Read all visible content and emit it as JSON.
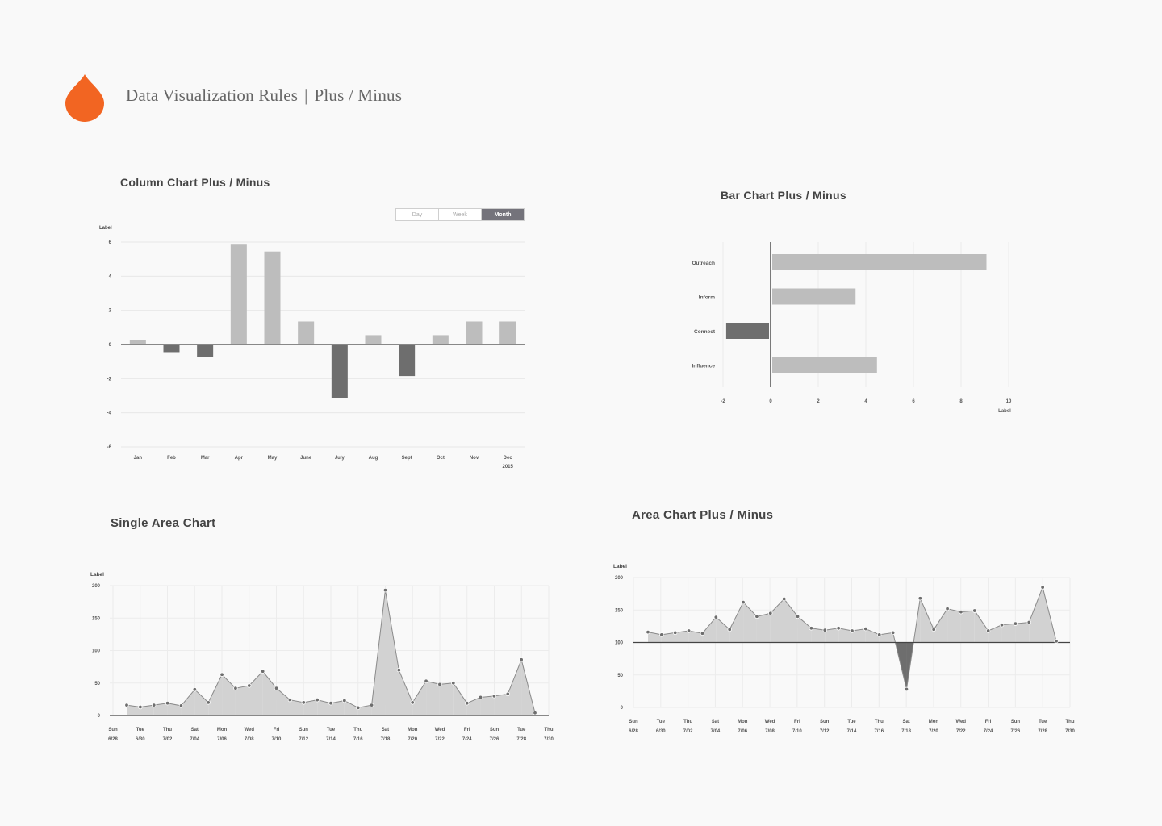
{
  "header": {
    "title": "Data Visualization Rules",
    "separator": "|",
    "subtitle": "Plus / Minus",
    "logo_color": "#f26522"
  },
  "colors": {
    "positive": "#bdbdbd",
    "negative": "#6e6e6e",
    "area": "#d2d2d2",
    "axis": "#444444"
  },
  "column_toggle": {
    "options": [
      "Day",
      "Week",
      "Month"
    ],
    "selected": "Month"
  },
  "chart_data": [
    {
      "id": "column",
      "type": "bar",
      "title": "Column Chart  Plus / Minus",
      "ylabel": "Label",
      "ylim": [
        -6,
        6
      ],
      "yticks": [
        6,
        4,
        2,
        0,
        -2,
        -4,
        -6
      ],
      "categories": [
        "Jan",
        "Feb",
        "Mar",
        "Apr",
        "May",
        "June",
        "July",
        "Aug",
        "Sept",
        "Oct",
        "Nov",
        "Dec"
      ],
      "year_label": "2015",
      "values": [
        0.2,
        -0.4,
        -0.7,
        5.8,
        5.4,
        1.3,
        -3.1,
        0.5,
        -1.8,
        0.5,
        1.3,
        1.3
      ],
      "grid": true
    },
    {
      "id": "bar",
      "type": "bar",
      "orientation": "horizontal",
      "title": "Bar Chart Plus / Minus",
      "xlabel": "Label",
      "xlim": [
        -2,
        10
      ],
      "xticks": [
        -2,
        0,
        2,
        4,
        6,
        8,
        10
      ],
      "categories": [
        "Outreach",
        "Inform",
        "Connect",
        "Influence"
      ],
      "values": [
        9,
        3.5,
        -1.8,
        4.4
      ],
      "grid": true
    },
    {
      "id": "single_area",
      "type": "area",
      "title": "Single Area Chart",
      "ylabel": "Label",
      "ylim": [
        0,
        200
      ],
      "yticks": [
        200,
        150,
        100,
        50,
        0
      ],
      "baseline": 0,
      "x_labels": [
        [
          "Sun",
          "6/28"
        ],
        [
          "Tue",
          "6/30"
        ],
        [
          "Thu",
          "7/02"
        ],
        [
          "Sat",
          "7/04"
        ],
        [
          "Mon",
          "7/06"
        ],
        [
          "Wed",
          "7/08"
        ],
        [
          "Fri",
          "7/10"
        ],
        [
          "Sun",
          "7/12"
        ],
        [
          "Tue",
          "7/14"
        ],
        [
          "Thu",
          "7/16"
        ],
        [
          "Sat",
          "7/18"
        ],
        [
          "Mon",
          "7/20"
        ],
        [
          "Wed",
          "7/22"
        ],
        [
          "Fri",
          "7/24"
        ],
        [
          "Sun",
          "7/26"
        ],
        [
          "Tue",
          "7/28"
        ],
        [
          "Thu",
          "7/30"
        ]
      ],
      "values": [
        16,
        13,
        16,
        19,
        15,
        40,
        20,
        63,
        42,
        46,
        68,
        42,
        24,
        20,
        24,
        19,
        23,
        12,
        16,
        193,
        70,
        20,
        53,
        48,
        50,
        19,
        28,
        30,
        33,
        86,
        4
      ],
      "grid": true
    },
    {
      "id": "area_plus_minus",
      "type": "area",
      "title": "Area Chart Plus / Minus",
      "ylabel": "Label",
      "ylim": [
        0,
        200
      ],
      "yticks": [
        200,
        150,
        100,
        50,
        0
      ],
      "baseline": 100,
      "x_labels": [
        [
          "Sun",
          "6/28"
        ],
        [
          "Tue",
          "6/30"
        ],
        [
          "Thu",
          "7/02"
        ],
        [
          "Sat",
          "7/04"
        ],
        [
          "Mon",
          "7/06"
        ],
        [
          "Wed",
          "7/08"
        ],
        [
          "Fri",
          "7/10"
        ],
        [
          "Sun",
          "7/12"
        ],
        [
          "Tue",
          "7/14"
        ],
        [
          "Thu",
          "7/16"
        ],
        [
          "Sat",
          "7/18"
        ],
        [
          "Mon",
          "7/20"
        ],
        [
          "Wed",
          "7/22"
        ],
        [
          "Fri",
          "7/24"
        ],
        [
          "Sun",
          "7/26"
        ],
        [
          "Tue",
          "7/28"
        ],
        [
          "Thu",
          "7/30"
        ]
      ],
      "values": [
        116,
        112,
        115,
        118,
        114,
        139,
        120,
        162,
        140,
        145,
        167,
        140,
        122,
        119,
        122,
        118,
        121,
        112,
        115,
        28,
        168,
        120,
        152,
        147,
        149,
        118,
        127,
        129,
        131,
        185,
        102
      ],
      "grid": true
    }
  ]
}
